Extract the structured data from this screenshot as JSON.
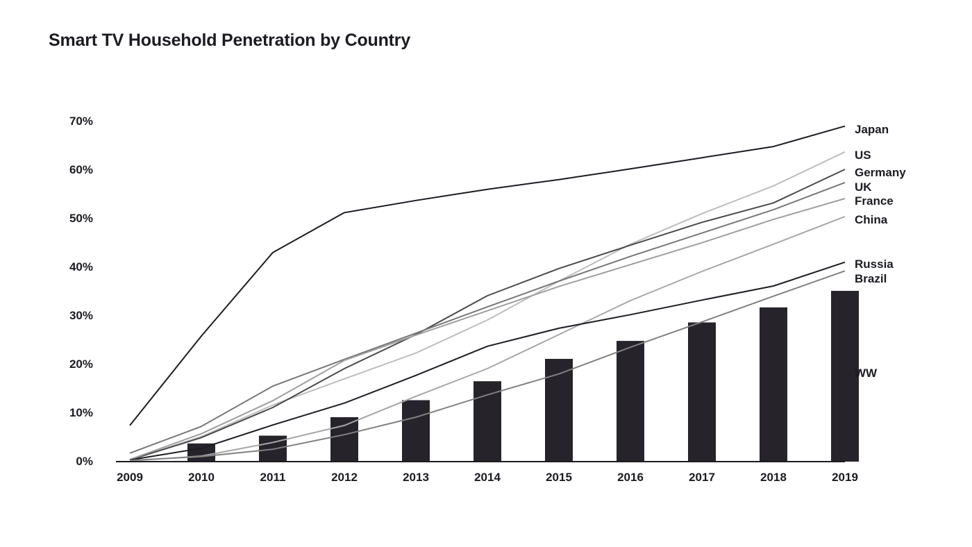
{
  "chart_data": {
    "type": "line",
    "title": "Smart TV Household Penetration by Country",
    "xlabel": "",
    "ylabel": "",
    "x": [
      "2009",
      "2010",
      "2011",
      "2012",
      "2013",
      "2014",
      "2015",
      "2016",
      "2017",
      "2018",
      "2019"
    ],
    "ylim": [
      0,
      70
    ],
    "yticks": [
      0,
      10,
      20,
      30,
      40,
      50,
      60,
      70
    ],
    "ytick_labels": [
      "0%",
      "10%",
      "20%",
      "30%",
      "40%",
      "50%",
      "60%",
      "70%"
    ],
    "grid": false,
    "legend": "series labels at right end of lines",
    "series": [
      {
        "name": "Japan",
        "type": "line",
        "color": "#1d1a22",
        "values": [
          7.3,
          25.7,
          42.9,
          51.1,
          53.6,
          55.9,
          57.9,
          60.1,
          62.4,
          64.7,
          68.9
        ]
      },
      {
        "name": "US",
        "type": "line",
        "color": "#bdbdbd",
        "values": [
          0.2,
          5.0,
          11.5,
          16.9,
          22.2,
          29.0,
          37.0,
          44.6,
          50.9,
          56.6,
          63.6
        ]
      },
      {
        "name": "Germany",
        "type": "line",
        "color": "#4a4a4a",
        "values": [
          0.2,
          4.8,
          11.0,
          19.0,
          26.0,
          34.0,
          39.6,
          44.4,
          49.1,
          53.1,
          60.0
        ]
      },
      {
        "name": "UK",
        "type": "line",
        "color": "#777777",
        "values": [
          1.6,
          7.1,
          15.4,
          20.9,
          26.3,
          31.7,
          37.0,
          42.1,
          46.9,
          51.7,
          57.3
        ]
      },
      {
        "name": "France",
        "type": "line",
        "color": "#9e9e9e",
        "values": [
          0.3,
          5.6,
          12.4,
          20.7,
          25.9,
          30.9,
          35.9,
          40.4,
          44.9,
          49.7,
          54.0
        ]
      },
      {
        "name": "China",
        "type": "line",
        "color": "#a6a6a6",
        "values": [
          0.0,
          1.0,
          3.8,
          7.3,
          13.3,
          19.0,
          26.0,
          33.0,
          39.0,
          44.6,
          50.3
        ]
      },
      {
        "name": "Russia",
        "type": "line",
        "color": "#1d1a22",
        "values": [
          0.2,
          2.6,
          7.4,
          11.9,
          17.6,
          23.6,
          27.3,
          30.1,
          33.1,
          36.0,
          40.9
        ]
      },
      {
        "name": "Brazil",
        "type": "line",
        "color": "#808080",
        "values": [
          0.1,
          0.9,
          2.4,
          5.4,
          9.0,
          13.6,
          17.9,
          23.4,
          28.6,
          33.9,
          39.1
        ]
      },
      {
        "name": "WW",
        "type": "bar",
        "color": "#26232b",
        "values": [
          0.0,
          3.6,
          5.2,
          9.0,
          12.5,
          16.4,
          21.0,
          24.7,
          28.5,
          31.6,
          35.0
        ]
      }
    ]
  }
}
